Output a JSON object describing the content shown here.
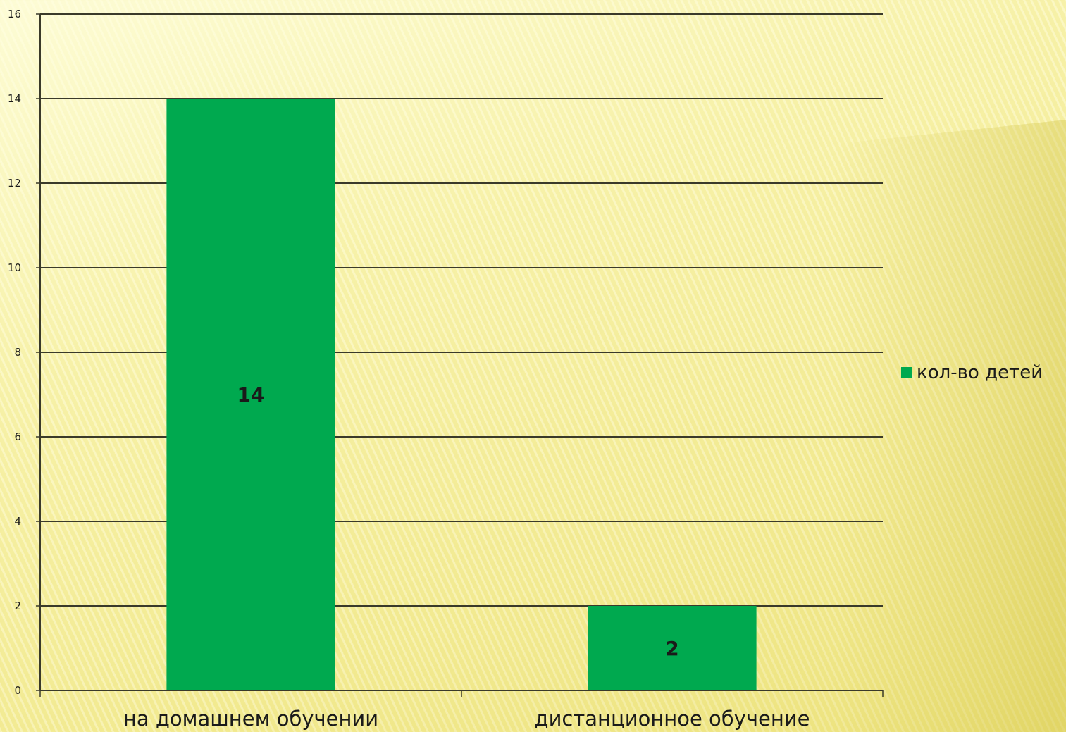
{
  "colors": {
    "bar": "#00a94f",
    "grid": "#3a3a2a",
    "text": "#1a1a1a"
  },
  "chart_data": {
    "type": "bar",
    "title": "",
    "xlabel": "",
    "ylabel": "",
    "categories": [
      "на домашнем обучении",
      "дистанционное обучение"
    ],
    "series": [
      {
        "name": "кол-во детей",
        "values": [
          14,
          2
        ]
      }
    ],
    "data_labels": [
      "14",
      "2"
    ],
    "ylim": [
      0,
      16
    ],
    "yticks": [
      0,
      2,
      4,
      6,
      8,
      10,
      12,
      14,
      16
    ],
    "ytick_labels": [
      "0",
      "2",
      "4",
      "6",
      "8",
      "10",
      "12",
      "14",
      "16"
    ],
    "grid": true,
    "legend_position": "right"
  }
}
